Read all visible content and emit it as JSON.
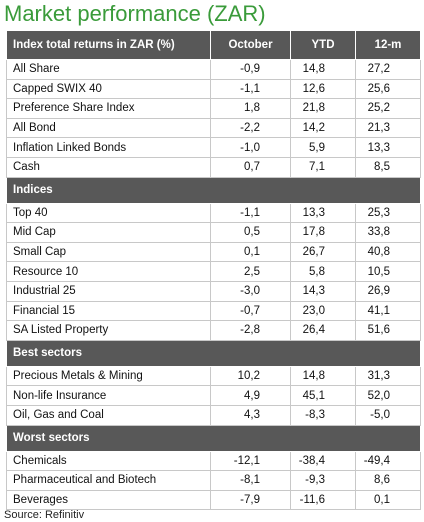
{
  "title": "Market performance (ZAR)",
  "table": {
    "columns": [
      "Index total returns in ZAR (%)",
      "October",
      "YTD",
      "12-m"
    ],
    "sections": [
      {
        "rows": [
          [
            "All Share",
            "-0,9",
            "14,8",
            "27,2"
          ],
          [
            "Capped SWIX 40",
            "-1,1",
            "12,6",
            "25,6"
          ],
          [
            "Preference Share Index",
            "1,8",
            "21,8",
            "25,2"
          ],
          [
            "All Bond",
            "-2,2",
            "14,2",
            "21,3"
          ],
          [
            "Inflation Linked Bonds",
            "-1,0",
            "5,9",
            "13,3"
          ],
          [
            "Cash",
            "0,7",
            "7,1",
            "8,5"
          ]
        ]
      },
      {
        "title": "Indices",
        "rows": [
          [
            "Top 40",
            "-1,1",
            "13,3",
            "25,3"
          ],
          [
            "Mid Cap",
            "0,5",
            "17,8",
            "33,8"
          ],
          [
            "Small Cap",
            "0,1",
            "26,7",
            "40,8"
          ],
          [
            "Resource 10",
            "2,5",
            "5,8",
            "10,5"
          ],
          [
            "Industrial 25",
            "-3,0",
            "14,3",
            "26,9"
          ],
          [
            "Financial 15",
            "-0,7",
            "23,0",
            "41,1"
          ],
          [
            "SA Listed Property",
            "-2,8",
            "26,4",
            "51,6"
          ]
        ]
      },
      {
        "title": "Best sectors",
        "rows": [
          [
            "Precious Metals & Mining",
            "10,2",
            "14,8",
            "31,3"
          ],
          [
            "Non-life Insurance",
            "4,9",
            "45,1",
            "52,0"
          ],
          [
            "Oil, Gas and Coal",
            "4,3",
            "-8,3",
            "-5,0"
          ]
        ]
      },
      {
        "title": "Worst sectors",
        "rows": [
          [
            "Chemicals",
            "-12,1",
            "-38,4",
            "-49,4"
          ],
          [
            "Pharmaceutical and Biotech",
            "-8,1",
            "-9,3",
            "8,6"
          ],
          [
            "Beverages",
            "-7,9",
            "-11,6",
            "0,1"
          ]
        ]
      }
    ]
  },
  "source": "Source: Refinitiv"
}
